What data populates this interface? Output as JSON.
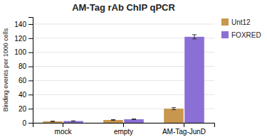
{
  "chart_data": {
    "type": "bar",
    "title": "AM-Tag rAb ChIP qPCR",
    "ylabel": "Binding events per 1000 cells",
    "categories": [
      "mock",
      "empty",
      "AM-Tag-JunD"
    ],
    "series": [
      {
        "name": "Unt12",
        "color": "#C8964E",
        "values": [
          2.0,
          4.0,
          20.0
        ],
        "errors": [
          0.4,
          0.5,
          1.5
        ]
      },
      {
        "name": "FOXRED",
        "color": "#8B6FD4",
        "values": [
          2.5,
          5.0,
          122.0
        ],
        "errors": [
          0.3,
          0.5,
          3.0
        ]
      }
    ],
    "ylim": [
      0,
      150
    ],
    "yticks": [
      0,
      20,
      40,
      60,
      80,
      100,
      120,
      140
    ],
    "grid": true,
    "legend": "right"
  }
}
